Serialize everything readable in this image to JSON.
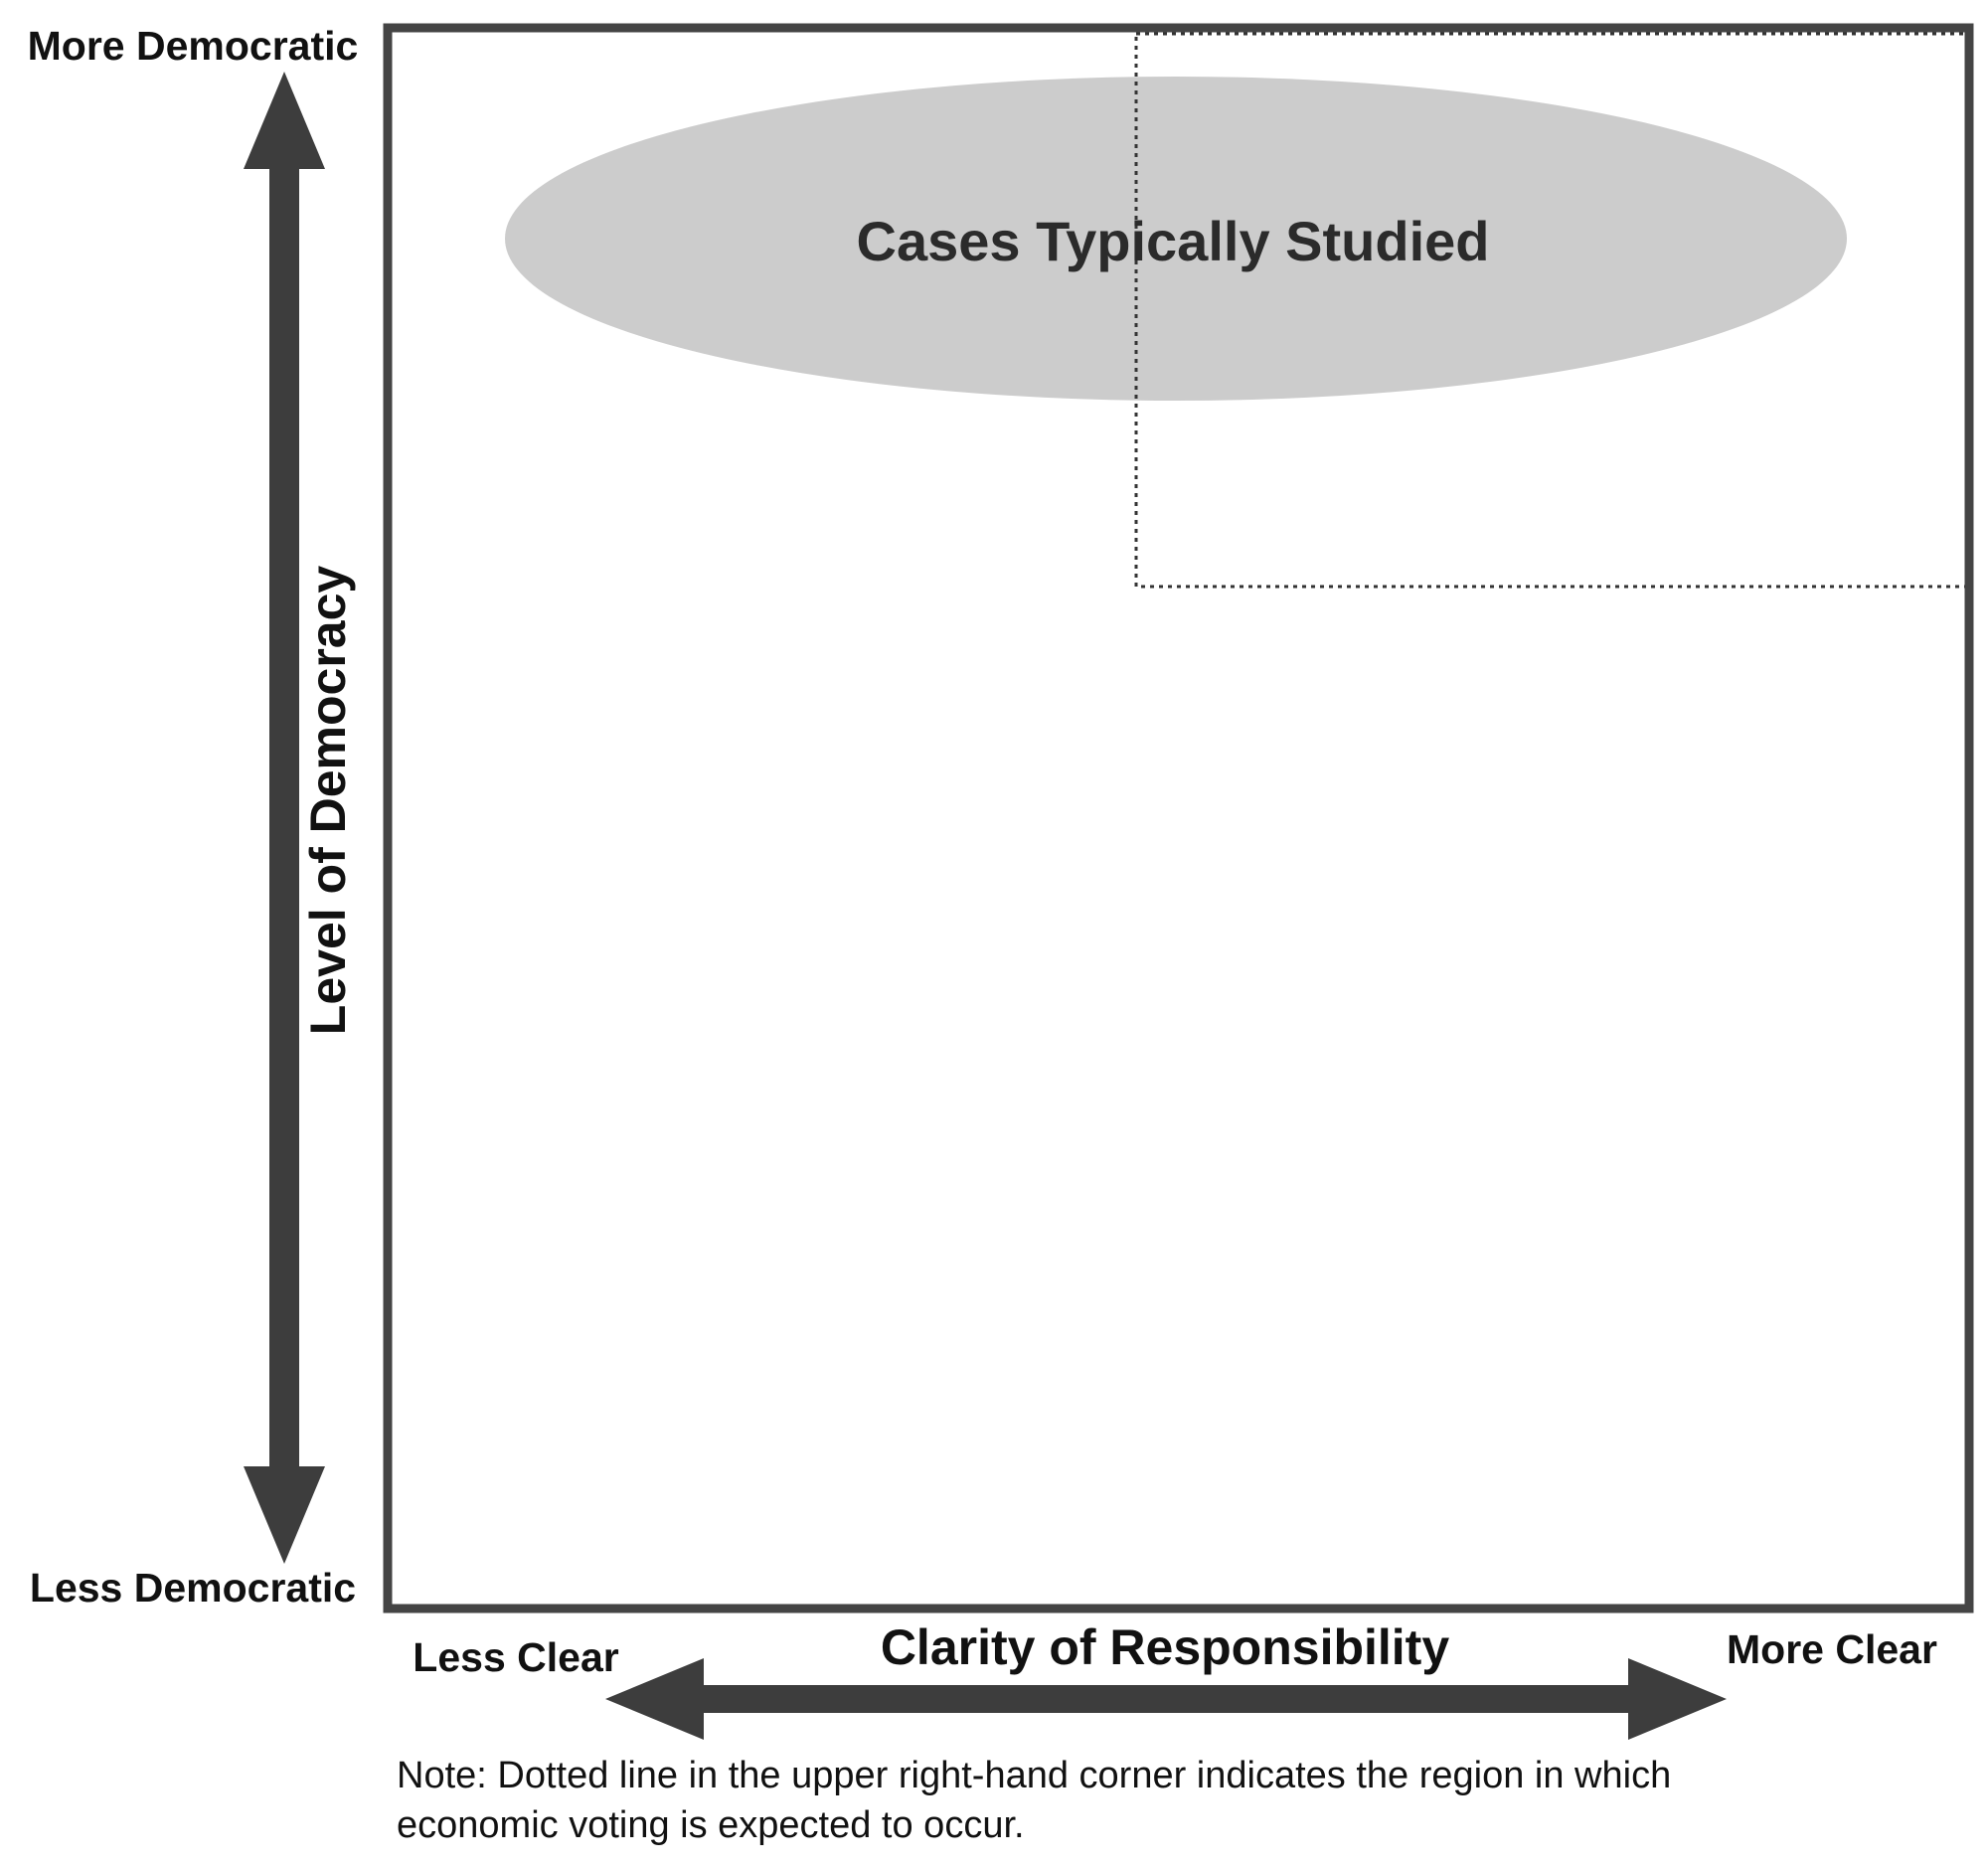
{
  "diagram": {
    "y_axis": {
      "top_label": "More Democratic",
      "bottom_label": "Less Democratic",
      "title": "Level of Democracy"
    },
    "x_axis": {
      "left_label": "Less Clear",
      "right_label": "More Clear",
      "title": "Clarity of Responsibility"
    },
    "ellipse_label": "Cases Typically Studied",
    "note": {
      "line1": "Note: Dotted line in the upper right-hand corner indicates the region in which",
      "line2": "economic voting is expected to occur."
    },
    "colors": {
      "frame": "#444444",
      "arrow": "#3d3d3d",
      "ellipse_fill": "#cccccc",
      "dotted_region": "#333333"
    }
  }
}
